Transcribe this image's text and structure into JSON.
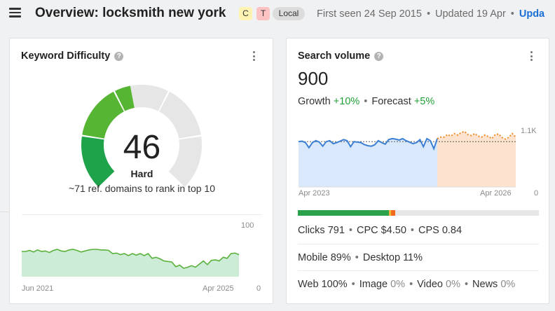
{
  "header": {
    "title": "Overview: locksmith new york",
    "badges": [
      "C",
      "T"
    ],
    "local_badge": "Local",
    "first_seen": "First seen 24 Sep 2015",
    "updated": "Updated 19 Apr",
    "update_link": "Upda"
  },
  "kd_card": {
    "title": "Keyword Difficulty",
    "value": "46",
    "label": "Hard",
    "subtext": "~71 ref. domains to rank in top 10",
    "chart": {
      "x_start": "Jun 2021",
      "x_end": "Apr 2025",
      "y_max": "100",
      "y_min": "0"
    }
  },
  "sv_card": {
    "title": "Search volume",
    "value": "900",
    "growth_label": "Growth",
    "growth_value": "+10%",
    "forecast_label": "Forecast",
    "forecast_value": "+5%",
    "chart": {
      "y_ref": "1.1K",
      "x_start": "Apr 2023",
      "x_end": "Apr 2026",
      "y_min": "0"
    },
    "clicks": "Clicks 791",
    "cpc": "CPC $4.50",
    "cps": "CPS 0.84",
    "mobile": "Mobile 89%",
    "desktop": "Desktop 11%",
    "web": "Web 100%",
    "image_label": "Image",
    "image_value": "0%",
    "video_label": "Video",
    "video_value": "0%",
    "news_label": "News",
    "news_value": "0%"
  },
  "chart_data": [
    {
      "type": "area",
      "name": "kd-history",
      "y_range": [
        0,
        100
      ],
      "x_labels": [
        "Jun 2021",
        "Apr 2025"
      ],
      "values": [
        48,
        48,
        50,
        47,
        51,
        48,
        49,
        46,
        50,
        52,
        49,
        48,
        51,
        52,
        50,
        47,
        49,
        51,
        52,
        52,
        51,
        51,
        50,
        44,
        45,
        42,
        44,
        40,
        44,
        41,
        44,
        40,
        44,
        35,
        37,
        34,
        30,
        29,
        28,
        19,
        22,
        16,
        18,
        21,
        18,
        24,
        30,
        23,
        31,
        32,
        30,
        37,
        35,
        44,
        45,
        42
      ]
    },
    {
      "type": "line",
      "name": "search-volume",
      "y_reference": "1.1K",
      "x_labels": [
        "Apr 2023",
        "Apr 2026"
      ],
      "history": [
        900,
        910,
        880,
        780,
        880,
        920,
        890,
        810,
        900,
        920,
        860,
        880,
        910,
        940,
        920,
        800,
        900,
        890,
        880,
        840,
        820,
        810,
        840,
        920,
        880,
        850,
        940,
        960,
        950,
        930,
        960,
        920,
        890,
        860,
        880,
        940,
        800,
        960,
        920,
        760,
        960
      ],
      "forecast": [
        960,
        990,
        990,
        1040,
        1010,
        1060,
        1030,
        1080,
        1100,
        1040,
        1020,
        1060,
        1010,
        990,
        1030,
        1000,
        960,
        1040,
        1050,
        980,
        950,
        990,
        1060,
        990
      ]
    }
  ],
  "colors": {
    "accent_link": "#1a6fd6",
    "positive": "#21a035",
    "gauge_green_dark": "#1fa34a",
    "gauge_green": "#56b533",
    "gauge_yellow_green": "#c4c414",
    "gauge_track": "#e6e6e6",
    "sv_line": "#3b7fd4",
    "forecast_line": "#f08a24",
    "bar_green": "#2ba24c",
    "bar_yellow": "#f3b53b",
    "bar_orange": "#f06b1c"
  },
  "bar_shares": [
    0.379,
    0.009,
    0.017
  ]
}
